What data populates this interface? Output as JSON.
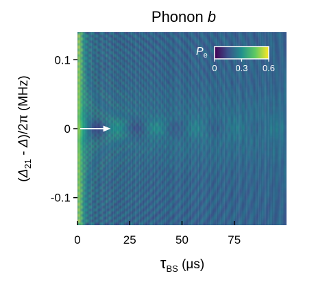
{
  "chart_data": {
    "type": "heatmap",
    "title_main": "Phonon ",
    "title_var": "b",
    "xlabel_symbol": "τ",
    "xlabel_sub": "BS",
    "xlabel_unit": " (μs)",
    "ylabel_part1": "(",
    "ylabel_var1": "Δ",
    "ylabel_sub": "21",
    "ylabel_part2": " - ",
    "ylabel_var2": "Δ",
    "ylabel_part3": ")/2π (MHz)",
    "xlim": [
      0,
      100
    ],
    "ylim": [
      -0.14,
      0.14
    ],
    "x_ticks": [
      0,
      25,
      50,
      75
    ],
    "x_tick_labels": [
      "0",
      "25",
      "50",
      "75"
    ],
    "y_ticks": [
      0.1,
      0,
      -0.1
    ],
    "y_tick_labels": [
      "0.1",
      "0",
      "-0.1"
    ],
    "colorbar": {
      "label_var": "P",
      "label_sub": "e",
      "range": [
        0,
        0.6
      ],
      "ticks": [
        0,
        0.3,
        0.6
      ],
      "tick_labels": [
        "0",
        "0.3",
        "0.6"
      ],
      "colormap": "viridis"
    },
    "annotation": {
      "type": "arrow",
      "x": 12,
      "y": 0,
      "color": "#ffffff"
    },
    "colors": {
      "low": "#3b3b8c",
      "background": "#2d4f8e",
      "mid": "#21918c",
      "high": "#fde725"
    }
  }
}
